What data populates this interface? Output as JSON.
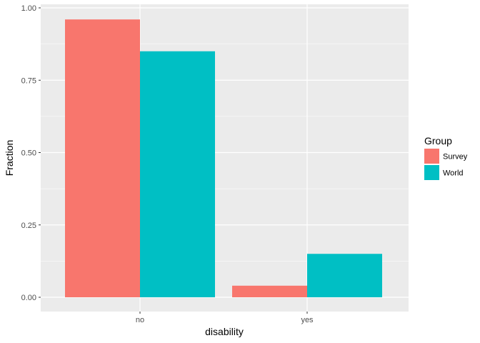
{
  "chart_data": {
    "type": "bar",
    "xlabel": "disability",
    "ylabel": "Fraction",
    "categories": [
      "no",
      "yes"
    ],
    "series": [
      {
        "name": "Survey",
        "values": [
          0.96,
          0.04
        ],
        "color": "#F8766D"
      },
      {
        "name": "World",
        "values": [
          0.85,
          0.15
        ],
        "color": "#00BFC4"
      }
    ],
    "ylim": [
      0,
      1
    ],
    "yticks": [
      0,
      0.25,
      0.5,
      0.75,
      1
    ],
    "ytick_labels": [
      "0.00",
      "0.25",
      "0.50",
      "0.75",
      "1.00"
    ],
    "legend": {
      "title": "Group",
      "placement": "right"
    },
    "grid": true,
    "panel_background": "#EBEBEB"
  }
}
